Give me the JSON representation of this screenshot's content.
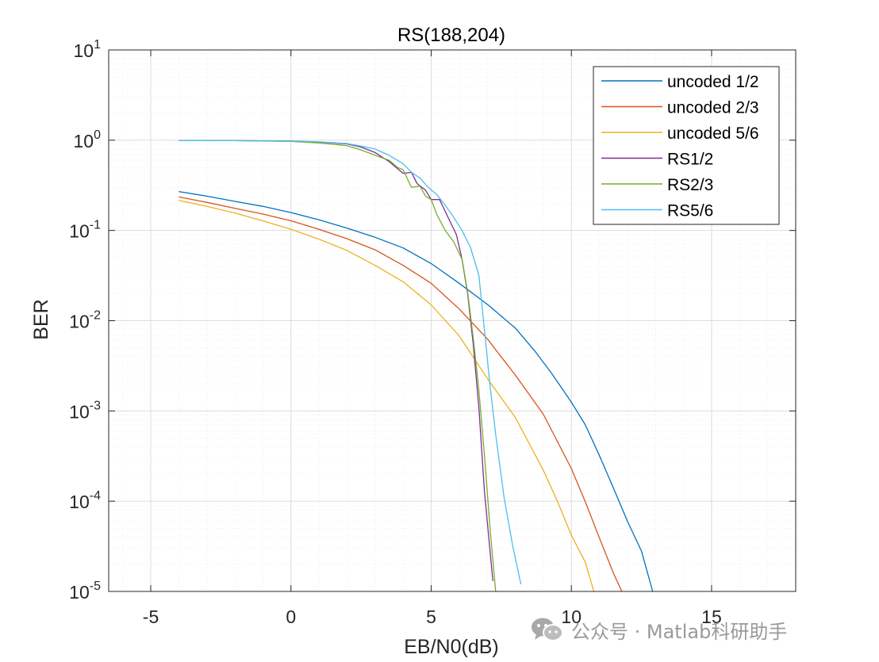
{
  "chart_data": {
    "type": "line",
    "title": "RS(188,204)",
    "xlabel": "EB/N0(dB)",
    "ylabel": "BER",
    "xlim": [
      -6.5,
      18
    ],
    "ylim": [
      1e-05,
      10
    ],
    "yscale": "log",
    "xticks": [
      -5,
      0,
      5,
      10,
      15
    ],
    "xtick_labels": [
      "-5",
      "0",
      "5",
      "10",
      "15"
    ],
    "yticks": [
      {
        "mantissa": "10",
        "exp": "-5",
        "value": 1e-05
      },
      {
        "mantissa": "10",
        "exp": "-4",
        "value": 0.0001
      },
      {
        "mantissa": "10",
        "exp": "-3",
        "value": 0.001
      },
      {
        "mantissa": "10",
        "exp": "-2",
        "value": 0.01
      },
      {
        "mantissa": "10",
        "exp": "-1",
        "value": 0.1
      },
      {
        "mantissa": "10",
        "exp": "0",
        "value": 1
      },
      {
        "mantissa": "10",
        "exp": "1",
        "value": 10
      }
    ],
    "grid": true,
    "legend_position": "top-right",
    "series": [
      {
        "name": "uncoded 1/2",
        "color": "#0072BD",
        "x": [
          -4,
          -3,
          -2,
          -1,
          0,
          1,
          2,
          3,
          4,
          5,
          6,
          7,
          8,
          8.7,
          9.3,
          10,
          10.5,
          11,
          11.5,
          12,
          12.5,
          12.9
        ],
        "y": [
          0.27,
          0.24,
          0.21,
          0.185,
          0.158,
          0.131,
          0.106,
          0.084,
          0.064,
          0.043,
          0.026,
          0.0152,
          0.0083,
          0.0046,
          0.0026,
          0.00125,
          0.0007,
          0.00032,
          0.00014,
          6e-05,
          2.8e-05,
          1e-05
        ]
      },
      {
        "name": "uncoded 2/3",
        "color": "#D95319",
        "x": [
          -4,
          -3,
          -2,
          -1,
          0,
          1,
          2,
          3,
          4,
          5,
          6,
          7,
          8,
          9,
          10,
          10.5,
          11,
          11.5,
          11.8
        ],
        "y": [
          0.235,
          0.205,
          0.176,
          0.152,
          0.128,
          0.103,
          0.081,
          0.061,
          0.041,
          0.026,
          0.0135,
          0.0063,
          0.0025,
          0.00092,
          0.00023,
          9.8e-05,
          3.9e-05,
          1.6e-05,
          1e-05
        ]
      },
      {
        "name": "uncoded 5/6",
        "color": "#EDB120",
        "x": [
          -4,
          -3,
          -2,
          -1,
          0,
          1,
          2,
          3,
          4,
          5,
          6,
          7,
          8,
          9,
          9.5,
          10,
          10.5,
          10.8
        ],
        "y": [
          0.215,
          0.185,
          0.156,
          0.128,
          0.103,
          0.08,
          0.06,
          0.041,
          0.027,
          0.015,
          0.0068,
          0.0023,
          0.00085,
          0.00022,
          0.0001,
          4.2e-05,
          2.1e-05,
          1e-05
        ]
      },
      {
        "name": "RS1/2",
        "color": "#7E2F8E",
        "x": [
          -4,
          -2,
          0,
          1,
          2,
          2.5,
          3,
          3.5,
          4,
          4.3,
          4.5,
          4.8,
          5,
          5.3,
          5.6,
          5.9,
          6.1,
          6.3,
          6.5,
          6.7,
          6.9,
          7.1,
          7.2
        ],
        "y": [
          0.99,
          0.99,
          0.975,
          0.955,
          0.91,
          0.84,
          0.73,
          0.58,
          0.43,
          0.44,
          0.33,
          0.28,
          0.22,
          0.22,
          0.14,
          0.09,
          0.048,
          0.02,
          0.0055,
          0.0011,
          0.00013,
          2.8e-05,
          1.3e-05
        ]
      },
      {
        "name": "RS2/3",
        "color": "#77AC30",
        "x": [
          -4,
          -2,
          0,
          1,
          1.5,
          2,
          2.5,
          3,
          3.5,
          3.8,
          4,
          4.3,
          4.6,
          4.8,
          5,
          5.2,
          5.5,
          5.8,
          6.1,
          6.3,
          6.5,
          6.7,
          6.9,
          7.1,
          7.3
        ],
        "y": [
          0.99,
          0.99,
          0.97,
          0.93,
          0.9,
          0.87,
          0.78,
          0.68,
          0.6,
          0.5,
          0.47,
          0.3,
          0.31,
          0.24,
          0.22,
          0.15,
          0.1,
          0.075,
          0.048,
          0.021,
          0.0065,
          0.0017,
          0.00033,
          5e-05,
          1e-05
        ]
      },
      {
        "name": "RS5/6",
        "color": "#4DBEEE",
        "x": [
          -4,
          -2,
          0,
          1,
          2,
          2.5,
          3,
          3.5,
          4,
          4.3,
          4.6,
          4.9,
          5.2,
          5.5,
          5.8,
          6.1,
          6.4,
          6.7,
          6.9,
          7.1,
          7.3,
          7.6,
          7.9,
          8.2
        ],
        "y": [
          0.99,
          0.99,
          0.98,
          0.96,
          0.92,
          0.86,
          0.8,
          0.68,
          0.55,
          0.44,
          0.38,
          0.3,
          0.25,
          0.19,
          0.14,
          0.1,
          0.065,
          0.032,
          0.008,
          0.0019,
          0.00055,
          0.00011,
          3.3e-05,
          1.2e-05
        ]
      }
    ]
  },
  "watermark": {
    "text": "公众号 · Matlab科研助手",
    "icon": "wechat-icon"
  }
}
